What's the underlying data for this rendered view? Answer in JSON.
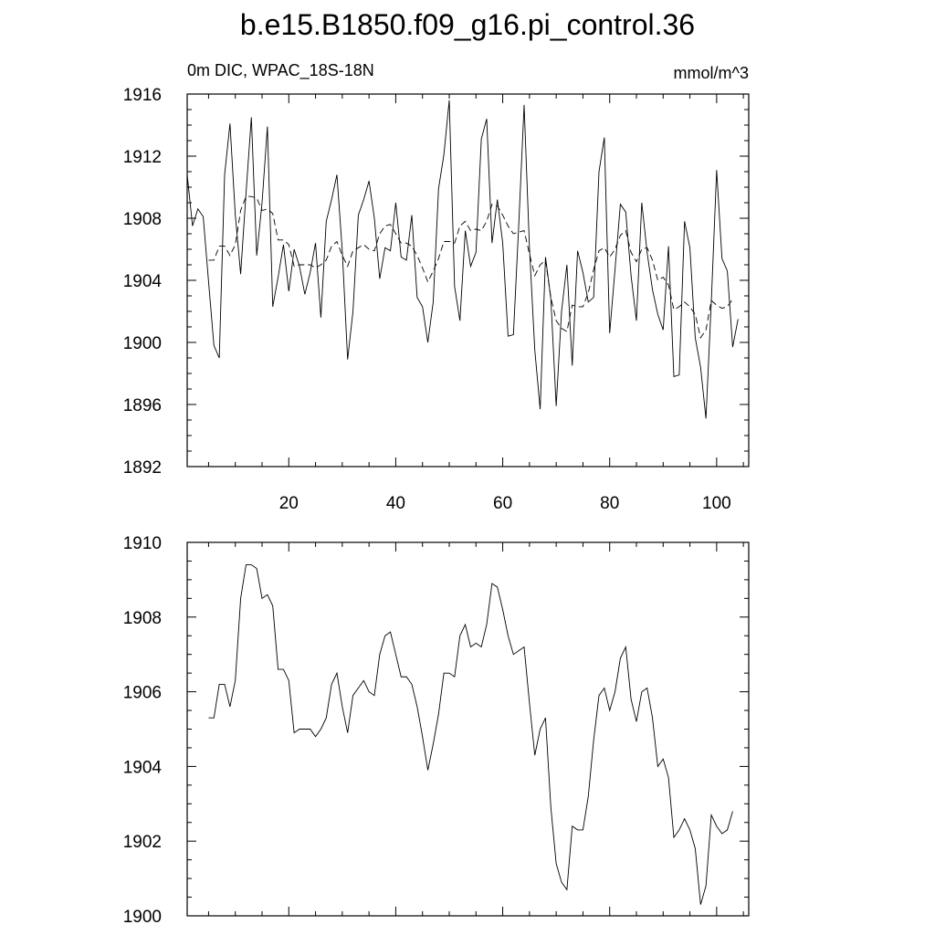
{
  "figure_title": "b.e15.B1850.f09_g16.pi_control.36",
  "chart_data": [
    {
      "type": "line",
      "left_string": "0m DIC, WPAC_18S-18N",
      "right_string": "mmol/m^3",
      "xlim": [
        1,
        106
      ],
      "ylim": [
        1892,
        1916
      ],
      "x_ticks": [
        20,
        40,
        60,
        80,
        100
      ],
      "y_ticks": [
        1892,
        1896,
        1900,
        1904,
        1908,
        1912,
        1916
      ],
      "series": [
        {
          "style": "solid",
          "x_start": 1,
          "values": [
            1910.8,
            1907.5,
            1908.6,
            1908.1,
            1903.9,
            1899.8,
            1899.0,
            1910.8,
            1914.1,
            1908.2,
            1904.4,
            1909.6,
            1914.5,
            1905.6,
            1909.0,
            1913.9,
            1902.3,
            1904.2,
            1906.3,
            1903.3,
            1906.0,
            1904.9,
            1903.1,
            1904.5,
            1906.4,
            1901.6,
            1907.8,
            1909.2,
            1910.8,
            1905.9,
            1898.9,
            1902.0,
            1908.2,
            1909.2,
            1910.4,
            1908.0,
            1904.1,
            1906.1,
            1905.9,
            1909.0,
            1905.5,
            1905.3,
            1908.2,
            1902.9,
            1902.3,
            1900.0,
            1902.6,
            1909.9,
            1912.1,
            1915.6,
            1903.6,
            1901.4,
            1907.2,
            1904.9,
            1905.8,
            1913.1,
            1914.4,
            1906.4,
            1909.2,
            1906.4,
            1900.4,
            1900.5,
            1907.6,
            1915.3,
            1906.1,
            1899.5,
            1895.7,
            1905.5,
            1902.8,
            1895.9,
            1902.0,
            1905.0,
            1898.5,
            1905.9,
            1904.5,
            1902.6,
            1902.9,
            1911.0,
            1913.2,
            1900.6,
            1904.7,
            1908.9,
            1908.4,
            1904.3,
            1901.4,
            1909.0,
            1905.8,
            1903.4,
            1901.8,
            1900.8,
            1906.2,
            1897.8,
            1897.9,
            1907.8,
            1906.1,
            1900.3,
            1898.4,
            1895.1,
            1902.6,
            1911.1,
            1905.4,
            1904.6,
            1899.7,
            1901.5
          ]
        },
        {
          "style": "dashed",
          "x_start": 5,
          "values": [
            1905.3,
            1905.3,
            1906.2,
            1906.2,
            1905.6,
            1906.3,
            1908.5,
            1909.4,
            1909.4,
            1909.3,
            1908.5,
            1908.6,
            1908.3,
            1906.6,
            1906.6,
            1906.3,
            1904.9,
            1905.0,
            1905.0,
            1905.0,
            1904.8,
            1905.0,
            1905.3,
            1906.2,
            1906.5,
            1905.6,
            1904.9,
            1905.9,
            1906.1,
            1906.3,
            1906.0,
            1905.9,
            1907.0,
            1907.5,
            1907.6,
            1907.0,
            1906.4,
            1906.4,
            1906.2,
            1905.6,
            1904.8,
            1903.9,
            1904.6,
            1905.4,
            1906.5,
            1906.5,
            1906.4,
            1907.5,
            1907.8,
            1907.2,
            1907.3,
            1907.2,
            1907.8,
            1908.9,
            1908.8,
            1908.2,
            1907.5,
            1907.0,
            1907.1,
            1907.2,
            1905.7,
            1904.3,
            1905.0,
            1905.3,
            1902.9,
            1901.4,
            1900.9,
            1900.7,
            1902.4,
            1902.3,
            1902.3,
            1903.2,
            1904.7,
            1905.9,
            1906.1,
            1905.5,
            1906.0,
            1906.9,
            1907.2,
            1905.8,
            1905.2,
            1906.0,
            1906.1,
            1905.3,
            1904.0,
            1904.2,
            1903.7,
            1902.1,
            1902.3,
            1902.6,
            1902.3,
            1901.8,
            1900.3,
            1900.8,
            1902.7,
            1902.4,
            1902.2,
            1902.3,
            1902.8
          ]
        }
      ]
    },
    {
      "type": "line",
      "xlim": [
        1,
        106
      ],
      "ylim": [
        1900,
        1910
      ],
      "x_ticks": [
        20,
        40,
        60,
        80,
        100
      ],
      "y_ticks": [
        1900,
        1902,
        1904,
        1906,
        1908,
        1910
      ],
      "series": [
        {
          "style": "solid",
          "x_start": 5,
          "values": [
            1905.3,
            1905.3,
            1906.2,
            1906.2,
            1905.6,
            1906.3,
            1908.5,
            1909.4,
            1909.4,
            1909.3,
            1908.5,
            1908.6,
            1908.3,
            1906.6,
            1906.6,
            1906.3,
            1904.9,
            1905.0,
            1905.0,
            1905.0,
            1904.8,
            1905.0,
            1905.3,
            1906.2,
            1906.5,
            1905.6,
            1904.9,
            1905.9,
            1906.1,
            1906.3,
            1906.0,
            1905.9,
            1907.0,
            1907.5,
            1907.6,
            1907.0,
            1906.4,
            1906.4,
            1906.2,
            1905.6,
            1904.8,
            1903.9,
            1904.6,
            1905.4,
            1906.5,
            1906.5,
            1906.4,
            1907.5,
            1907.8,
            1907.2,
            1907.3,
            1907.2,
            1907.8,
            1908.9,
            1908.8,
            1908.2,
            1907.5,
            1907.0,
            1907.1,
            1907.2,
            1905.7,
            1904.3,
            1905.0,
            1905.3,
            1902.9,
            1901.4,
            1900.9,
            1900.7,
            1902.4,
            1902.3,
            1902.3,
            1903.2,
            1904.7,
            1905.9,
            1906.1,
            1905.5,
            1906.0,
            1906.9,
            1907.2,
            1905.8,
            1905.2,
            1906.0,
            1906.1,
            1905.3,
            1904.0,
            1904.2,
            1903.7,
            1902.1,
            1902.3,
            1902.6,
            1902.3,
            1901.8,
            1900.3,
            1900.8,
            1902.7,
            1902.4,
            1902.2,
            1902.3,
            1902.8
          ]
        }
      ]
    }
  ]
}
